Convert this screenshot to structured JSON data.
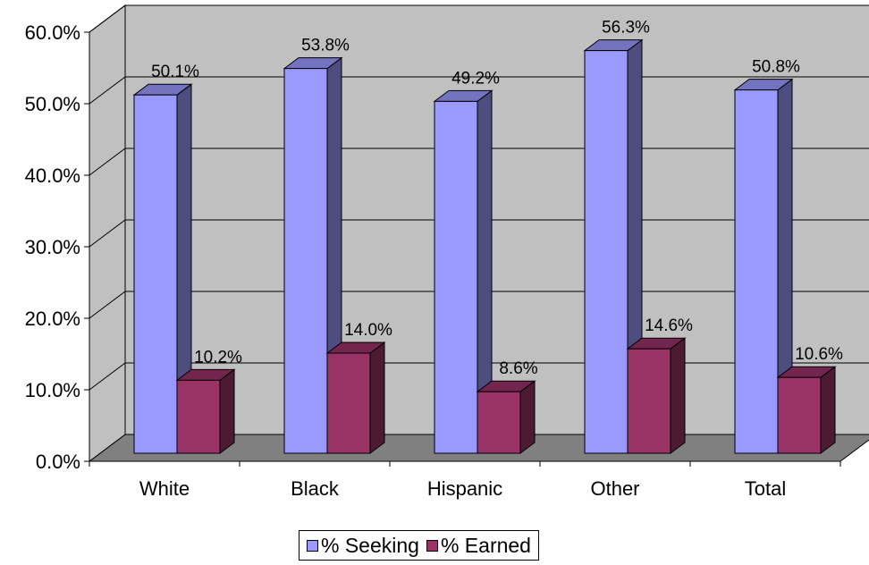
{
  "chart_data": {
    "type": "bar",
    "categories": [
      "White",
      "Black",
      "Hispanic",
      "Other",
      "Total"
    ],
    "series": [
      {
        "name": "% Seeking",
        "values": [
          50.1,
          53.8,
          49.2,
          56.3,
          50.8
        ],
        "labels": [
          "50.1%",
          "53.8%",
          "49.2%",
          "56.3%",
          "50.8%"
        ],
        "color": "#9999ff"
      },
      {
        "name": "% Earned",
        "values": [
          10.2,
          14.0,
          8.6,
          14.6,
          10.6
        ],
        "labels": [
          "10.2%",
          "14.0%",
          "8.6%",
          "14.6%",
          "10.6%"
        ],
        "color": "#993366"
      }
    ],
    "yticks": [
      "0.0%",
      "10.0%",
      "20.0%",
      "30.0%",
      "40.0%",
      "50.0%",
      "60.0%"
    ],
    "ylim": [
      0,
      60
    ],
    "grid": true,
    "legend_position": "bottom",
    "style": "3d-clustered-column",
    "colors": {
      "wall": "#c0c0c0",
      "floor": "#808080"
    }
  }
}
